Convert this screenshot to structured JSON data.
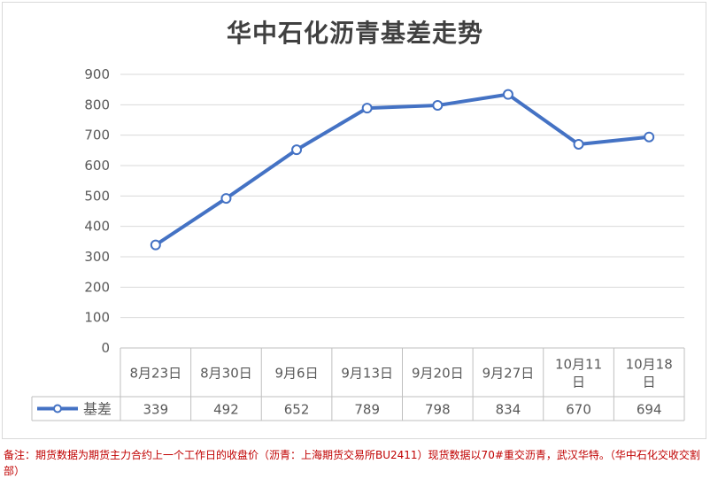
{
  "chart_data": {
    "type": "line",
    "title": "华中石化沥青基差走势",
    "categories": [
      [
        "8月23日"
      ],
      [
        "8月30日"
      ],
      [
        "9月6日"
      ],
      [
        "9月13日"
      ],
      [
        "9月20日"
      ],
      [
        "9月27日"
      ],
      [
        "10月11",
        "日"
      ],
      [
        "10月18",
        "日"
      ]
    ],
    "series": [
      {
        "name": "基差",
        "values": [
          339,
          492,
          652,
          789,
          798,
          834,
          670,
          694
        ],
        "color": "#4472c4"
      }
    ],
    "yticks": [
      "0",
      "100",
      "200",
      "300",
      "400",
      "500",
      "600",
      "700",
      "800",
      "900"
    ],
    "ylim": [
      0,
      900
    ],
    "table_values": [
      "339",
      "492",
      "652",
      "789",
      "798",
      "834",
      "670",
      "694"
    ],
    "grid": true,
    "legend": "data-table"
  },
  "note": "备注：期货数据为期货主力合约上一个工作日的收盘价（沥青：上海期货交易所BU2411）现货数据以70#重交沥青，武汉华特。（华中石化交收交割部）"
}
